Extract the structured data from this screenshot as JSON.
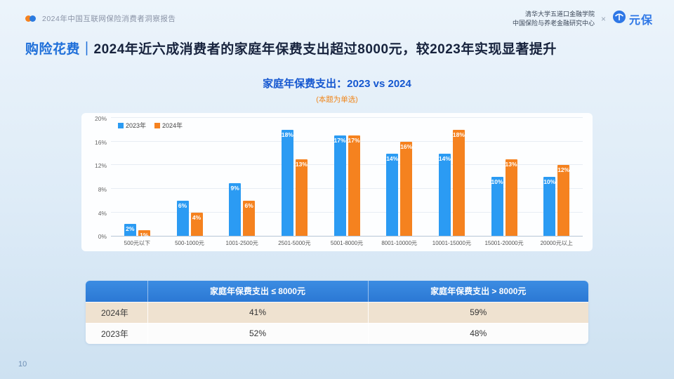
{
  "header": {
    "report_title": "2024年中国互联网保险消费者洞察报告",
    "org_line1": "清华大学五道口金融学院",
    "org_line2": "中国保险与养老金融研究中心",
    "separator": "×",
    "brand": "元保"
  },
  "headline": {
    "tag": "购险花费",
    "divider": "｜",
    "text": "2024年近六成消费者的家庭年保费支出超过8000元，较2023年实现显著提升"
  },
  "chart_data": {
    "type": "bar",
    "title": "家庭年保费支出：2023 vs 2024",
    "subtitle": "(本题为单选)",
    "categories": [
      "500元以下",
      "500-1000元",
      "1001-2500元",
      "2501-5000元",
      "5001-8000元",
      "8001-10000元",
      "10001-15000元",
      "15001-20000元",
      "20000元以上"
    ],
    "series": [
      {
        "name": "2023年",
        "color": "#2B9BF3",
        "values": [
          2,
          6,
          9,
          18,
          17,
          14,
          14,
          10,
          10
        ]
      },
      {
        "name": "2024年",
        "color": "#F5821F",
        "values": [
          1,
          4,
          6,
          13,
          17,
          16,
          18,
          13,
          12
        ]
      }
    ],
    "unit": "%",
    "yticks": [
      0,
      4,
      8,
      12,
      16,
      20
    ],
    "ylim": [
      0,
      20
    ],
    "grid": true,
    "legend_position": "top-left"
  },
  "table": {
    "headers": [
      "",
      "家庭年保费支出 ≤ 8000元",
      "家庭年保费支出 > 8000元"
    ],
    "rows": [
      {
        "label": "2024年",
        "values": [
          "41%",
          "59%"
        ]
      },
      {
        "label": "2023年",
        "values": [
          "52%",
          "48%"
        ]
      }
    ]
  },
  "footer": {
    "page_number": "10"
  },
  "colors": {
    "accent_blue": "#1E6FD9",
    "accent_orange": "#F5821F",
    "series_2023": "#2B9BF3",
    "series_2024": "#F5821F",
    "table_header_bg": "#2F80D8",
    "row_2024_bg": "#EFE2D0",
    "slide_bg": "#DDEBF7"
  }
}
